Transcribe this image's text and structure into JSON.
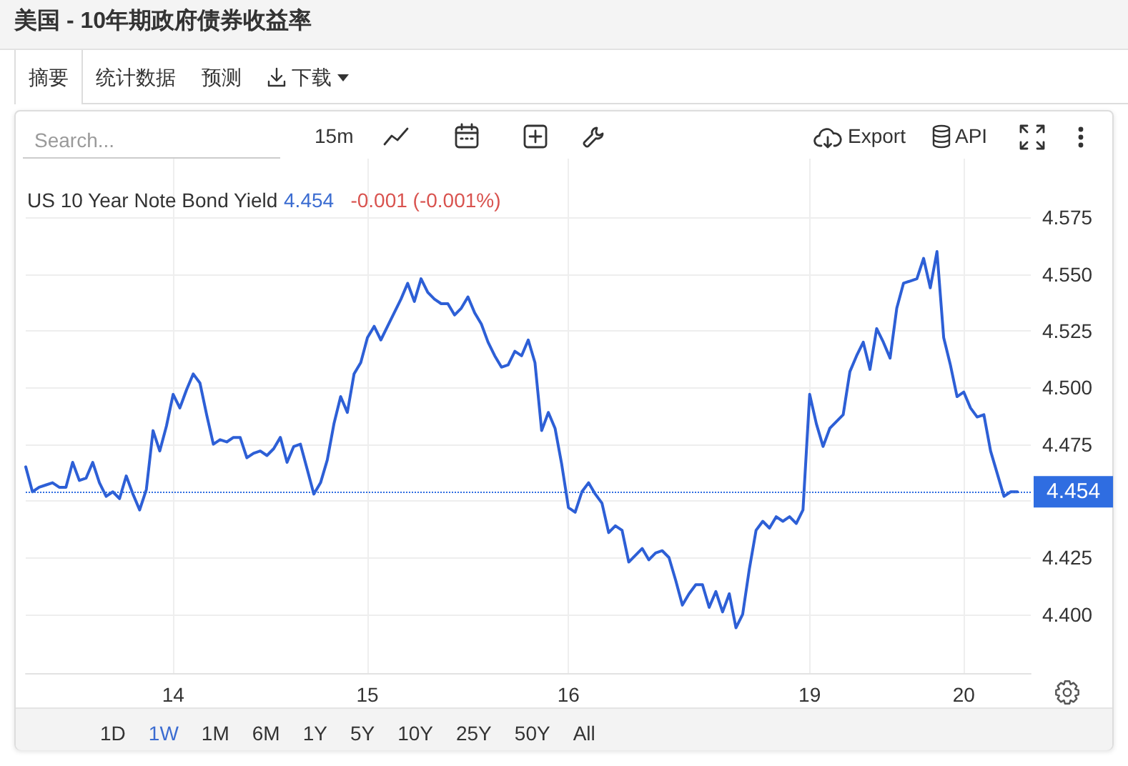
{
  "chart_data": {
    "type": "line",
    "title": "美国 - 10年期政府债券收益率",
    "subtitle": "US 10 Year Note Bond Yield",
    "categories": [
      null,
      null,
      null,
      null,
      null,
      null,
      null,
      null,
      null,
      null,
      null,
      null,
      null,
      null,
      null,
      null,
      null,
      null,
      null,
      null,
      null,
      null,
      "14",
      null,
      null,
      null,
      null,
      null,
      null,
      null,
      null,
      null,
      null,
      null,
      null,
      null,
      null,
      null,
      null,
      null,
      null,
      null,
      null,
      null,
      null,
      null,
      null,
      null,
      null,
      null,
      null,
      "15",
      null,
      null,
      null,
      null,
      null,
      null,
      null,
      null,
      null,
      null,
      null,
      null,
      null,
      null,
      null,
      null,
      null,
      null,
      null,
      null,
      null,
      null,
      null,
      null,
      null,
      null,
      null,
      null,
      null,
      "16",
      null,
      null,
      null,
      null,
      null,
      null,
      null,
      null,
      null,
      null,
      null,
      null,
      null,
      null,
      null,
      null,
      null,
      null,
      null,
      null,
      null,
      null,
      null,
      null,
      null,
      null,
      null,
      null,
      null,
      null,
      null,
      null,
      null,
      null,
      null,
      "19",
      null,
      null,
      null,
      null,
      null,
      null,
      null,
      null,
      null,
      null,
      null,
      null,
      null,
      null,
      null,
      null,
      null,
      null,
      null,
      null,
      null,
      null,
      "20",
      null,
      null,
      null,
      null,
      null,
      null,
      null,
      null,
      null,
      null
    ],
    "series": [
      {
        "color": "#2d5fd6",
        "values": [
          4.465,
          4.454,
          4.456,
          4.457,
          4.458,
          4.456,
          4.456,
          4.467,
          4.459,
          4.46,
          4.467,
          4.458,
          4.452,
          4.454,
          4.451,
          4.461,
          4.453,
          4.446,
          4.455,
          4.481,
          4.472,
          4.483,
          4.497,
          4.491,
          4.499,
          4.506,
          4.502,
          4.488,
          4.475,
          4.477,
          4.476,
          4.478,
          4.478,
          4.469,
          4.471,
          4.472,
          4.47,
          4.473,
          4.478,
          4.467,
          4.474,
          4.475,
          4.464,
          4.453,
          4.458,
          4.468,
          4.484,
          4.496,
          4.489,
          4.506,
          4.511,
          4.522,
          4.527,
          4.521,
          4.527,
          4.533,
          4.539,
          4.546,
          4.538,
          4.548,
          4.542,
          4.539,
          4.537,
          4.537,
          4.532,
          4.535,
          4.54,
          4.533,
          4.528,
          4.52,
          4.514,
          4.509,
          4.51,
          4.516,
          4.514,
          4.521,
          4.511,
          4.481,
          4.489,
          4.482,
          4.466,
          4.447,
          4.445,
          4.454,
          4.458,
          4.453,
          4.449,
          4.436,
          4.439,
          4.437,
          4.423,
          4.426,
          4.429,
          4.424,
          4.427,
          4.428,
          4.425,
          4.415,
          4.404,
          4.409,
          4.413,
          4.413,
          4.403,
          4.41,
          4.401,
          4.409,
          4.394,
          4.4,
          4.42,
          4.437,
          4.441,
          4.438,
          4.443,
          4.441,
          4.443,
          4.44,
          4.446,
          4.497,
          4.484,
          4.474,
          4.482,
          4.485,
          4.488,
          4.507,
          4.514,
          4.52,
          4.508,
          4.526,
          4.52,
          4.513,
          4.535,
          4.546,
          4.547,
          4.548,
          4.557,
          4.544,
          4.56,
          4.522,
          4.51,
          4.496,
          4.498,
          4.491,
          4.487,
          4.488,
          4.472,
          4.462,
          4.452,
          4.454,
          4.454,
          null,
          null
        ]
      }
    ],
    "ylim": [
      4.374,
      4.601
    ],
    "yticks": [
      {
        "value": 4.4,
        "label": "4.400"
      },
      4.425,
      {
        "value": 4.45,
        "label": null
      },
      4.475,
      {
        "value": 4.5,
        "label": "4.500"
      },
      4.525,
      {
        "value": 4.55,
        "label": "4.550"
      },
      4.575
    ],
    "grid": true,
    "ref_lines": [
      {
        "axis": "y",
        "value": 4.454,
        "label": "4.454",
        "color": "#2f6de1",
        "line_style": "dotted"
      }
    ],
    "annotations": [
      "4.454",
      "-0.001 (-0.001%)",
      "摘要",
      "统计数据",
      "预测",
      "下载",
      "Search...",
      "15m",
      "Export",
      "API",
      "1D",
      "1W",
      "1M",
      "6M",
      "1Y",
      "5Y",
      "10Y",
      "25Y",
      "50Y",
      "All"
    ]
  }
}
